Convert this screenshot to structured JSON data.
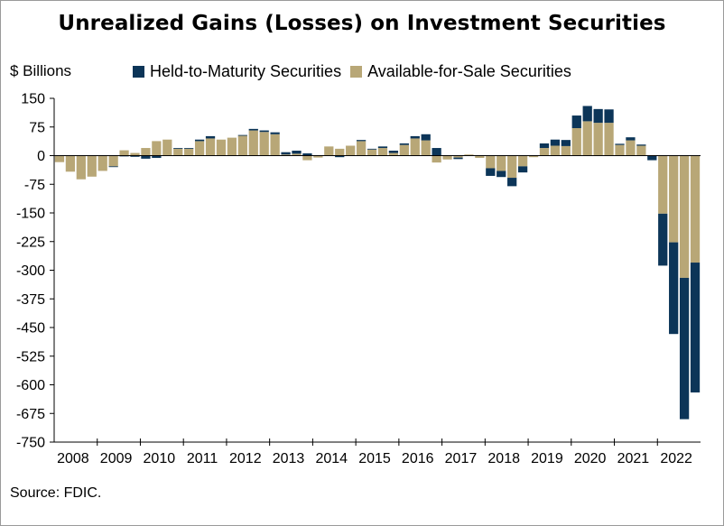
{
  "title": "Unrealized Gains (Losses) on Investment Securities",
  "unit_label": "$ Billions",
  "source": "Source: FDIC.",
  "colors": {
    "htm": "#0c3558",
    "afs": "#b8a777",
    "grid": "#000000"
  },
  "chart_data": {
    "type": "bar",
    "stacked": true,
    "grid": false,
    "legend_position": "top",
    "ylim": [
      -750,
      150
    ],
    "yticks": [
      150,
      75,
      0,
      -75,
      -150,
      -225,
      -300,
      -375,
      -450,
      -525,
      -600,
      -675,
      -750
    ],
    "years": [
      "2008",
      "2009",
      "2010",
      "2011",
      "2012",
      "2013",
      "2014",
      "2015",
      "2016",
      "2017",
      "2018",
      "2019",
      "2020",
      "2021",
      "2022"
    ],
    "quarters_per_year": 4,
    "series": [
      {
        "name": "Held-to-Maturity Securities",
        "color": "#0c3558",
        "values": [
          0,
          -2,
          -2,
          -3,
          -8,
          -6,
          0,
          2,
          2,
          4,
          6,
          0,
          0,
          2,
          4,
          4,
          5,
          6,
          8,
          6,
          1,
          0,
          -4,
          -1,
          3,
          2,
          4,
          6,
          4,
          6,
          16,
          20,
          0,
          -4,
          -1,
          1,
          -20,
          -16,
          -22,
          -16,
          0,
          12,
          16,
          16,
          33,
          40,
          36,
          35,
          3,
          8,
          3,
          -12,
          -136,
          -240,
          -370,
          -340
        ],
        "quarter_count": 56
      },
      {
        "name": "Available-for-Sale Securities",
        "color": "#b8a777",
        "values": [
          -17,
          -42,
          -62,
          -55,
          -40,
          -28,
          14,
          7,
          20,
          38,
          42,
          18,
          18,
          38,
          45,
          42,
          47,
          52,
          66,
          62,
          56,
          3,
          5,
          -12,
          -5,
          24,
          18,
          26,
          38,
          16,
          20,
          7,
          28,
          45,
          40,
          -18,
          -10,
          -5,
          3,
          -6,
          -33,
          -40,
          -58,
          -28,
          -4,
          20,
          26,
          25,
          72,
          90,
          86,
          86,
          28,
          40,
          26,
          0,
          -152,
          -227,
          -320,
          -280
        ],
        "quarter_count": 60
      }
    ],
    "htm_start_quarter_index": 4
  }
}
